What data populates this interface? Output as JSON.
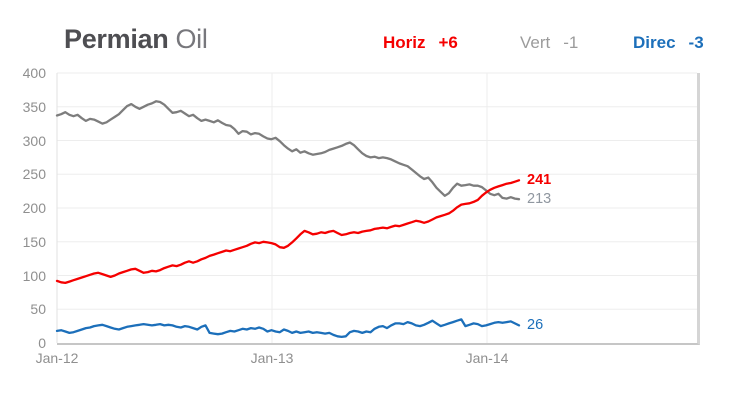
{
  "title": {
    "primary": "Permian",
    "secondary": "Oil"
  },
  "legend": [
    {
      "name": "Horiz",
      "value": "+6",
      "color": "#f50000"
    },
    {
      "name": "Vert",
      "value": "-1",
      "color": "#9b9b9b"
    },
    {
      "name": "Direc",
      "value": "-3",
      "color": "#1c6fba"
    }
  ],
  "colors": {
    "red_series": "#f50000",
    "gray_series": "#7d7d7d",
    "blue_series": "#1c6fba",
    "axis_text": "#8f8f8f",
    "gridline": "#ededed",
    "title_primary": "#4e4e52",
    "title_secondary": "#77777c"
  },
  "chart_data": {
    "type": "line",
    "title": "Permian Oil",
    "xlabel": "",
    "ylabel": "",
    "ylim": [
      0,
      400
    ],
    "y_ticks": [
      0,
      50,
      100,
      150,
      200,
      250,
      300,
      350,
      400
    ],
    "x_ticks": [
      "Jan-12",
      "Jan-13",
      "Jan-14"
    ],
    "x_unit": "weekly points from Jan-2012 to Feb-2014",
    "grid": true,
    "legend_position": "top-right",
    "series": [
      {
        "name": "Horiz",
        "legend_value": "+6",
        "color": "#f50000",
        "end_label": "241",
        "end_label_bold": true,
        "values": [
          92,
          90,
          89,
          91,
          93,
          95,
          97,
          99,
          101,
          103,
          104,
          102,
          100,
          98,
          100,
          103,
          105,
          107,
          109,
          110,
          107,
          104,
          105,
          107,
          106,
          108,
          111,
          113,
          115,
          114,
          116,
          119,
          121,
          119,
          121,
          124,
          126,
          129,
          131,
          133,
          135,
          137,
          136,
          138,
          140,
          142,
          144,
          147,
          149,
          148,
          150,
          149,
          148,
          146,
          142,
          141,
          144,
          149,
          155,
          161,
          166,
          164,
          161,
          162,
          164,
          163,
          165,
          166,
          163,
          160,
          161,
          163,
          164,
          163,
          165,
          166,
          167,
          169,
          170,
          171,
          170,
          172,
          174,
          173,
          175,
          177,
          179,
          181,
          180,
          178,
          180,
          183,
          186,
          188,
          190,
          192,
          196,
          201,
          205,
          206,
          207,
          209,
          212,
          218,
          223,
          227,
          230,
          232,
          234,
          236,
          237,
          239,
          241
        ]
      },
      {
        "name": "Vert",
        "legend_value": "-1",
        "color": "#7d7d7d",
        "end_label": "213",
        "end_label_color": "#9097a0",
        "values": [
          337,
          339,
          342,
          338,
          336,
          338,
          333,
          329,
          332,
          331,
          328,
          325,
          327,
          331,
          335,
          339,
          345,
          351,
          354,
          350,
          347,
          350,
          353,
          355,
          358,
          357,
          353,
          347,
          341,
          342,
          344,
          340,
          336,
          338,
          333,
          329,
          331,
          329,
          327,
          330,
          326,
          323,
          322,
          317,
          310,
          314,
          313,
          309,
          311,
          310,
          306,
          303,
          302,
          304,
          299,
          293,
          288,
          284,
          287,
          282,
          284,
          281,
          279,
          280,
          281,
          283,
          286,
          288,
          290,
          292,
          295,
          297,
          293,
          287,
          281,
          277,
          275,
          276,
          274,
          275,
          274,
          272,
          269,
          266,
          264,
          262,
          257,
          252,
          247,
          243,
          245,
          238,
          230,
          224,
          218,
          222,
          230,
          236,
          233,
          234,
          235,
          233,
          233,
          231,
          226,
          221,
          219,
          221,
          215,
          214,
          216,
          214,
          213
        ]
      },
      {
        "name": "Direc",
        "legend_value": "-3",
        "color": "#1c6fba",
        "end_label": "26",
        "values": [
          18,
          19,
          17,
          15,
          16,
          18,
          20,
          22,
          23,
          25,
          26,
          27,
          25,
          23,
          21,
          20,
          22,
          24,
          25,
          26,
          27,
          28,
          27,
          26,
          27,
          28,
          26,
          27,
          26,
          24,
          23,
          25,
          24,
          22,
          20,
          24,
          26,
          15,
          14,
          13,
          14,
          16,
          18,
          17,
          19,
          21,
          20,
          22,
          21,
          23,
          21,
          17,
          19,
          17,
          16,
          20,
          18,
          15,
          17,
          15,
          16,
          17,
          15,
          16,
          15,
          14,
          15,
          12,
          10,
          9,
          10,
          16,
          18,
          17,
          15,
          17,
          16,
          21,
          24,
          25,
          22,
          26,
          29,
          29,
          28,
          31,
          29,
          26,
          25,
          27,
          30,
          33,
          29,
          25,
          27,
          29,
          31,
          33,
          35,
          25,
          27,
          29,
          28,
          25,
          26,
          28,
          30,
          31,
          30,
          31,
          32,
          29,
          26
        ]
      }
    ]
  }
}
